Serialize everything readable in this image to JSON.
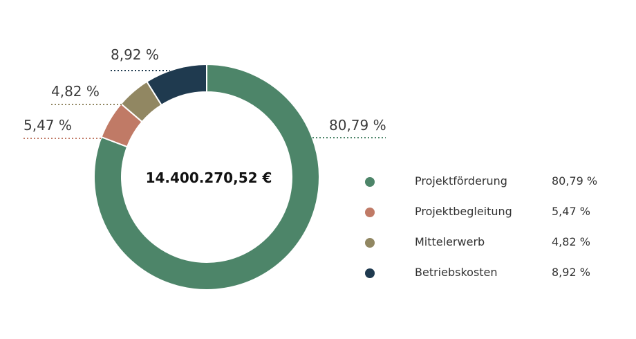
{
  "chart_data": {
    "type": "pie",
    "donut": true,
    "total_label": "14.400.270,52 €",
    "categories": [
      "Projektförderung",
      "Projektbegleitung",
      "Mittelerwerb",
      "Betriebskosten"
    ],
    "values": [
      80.79,
      5.47,
      4.82,
      8.92
    ],
    "value_labels": [
      "80,79 %",
      "5,47 %",
      "4,82 %",
      "8,92 %"
    ],
    "colors": [
      "#4d8569",
      "#c07a66",
      "#918762",
      "#1f3a4f"
    ],
    "legend_placement": "right"
  }
}
